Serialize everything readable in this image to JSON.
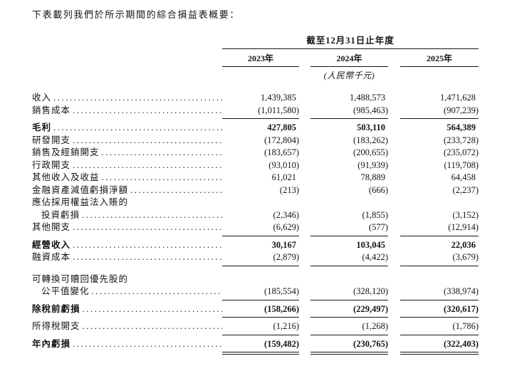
{
  "page": {
    "intro": "下表載列我們於所示期間的綜合損益表概要："
  },
  "table": {
    "period_header": "截至12月31日止年度",
    "unit_note": "(人民幣千元)",
    "columns": [
      "2023年",
      "2024年",
      "2025年"
    ],
    "rows": [
      {
        "label": "收入",
        "values": [
          "1,439,385",
          "1,488,573",
          "1,471,628"
        ],
        "bold": false,
        "indent": false,
        "rule_below": null
      },
      {
        "label": "銷售成本",
        "values": [
          "(1,011,580)",
          "(985,463)",
          "(907,239)"
        ],
        "bold": false,
        "indent": false,
        "rule_below": "single"
      },
      {
        "label": "毛利",
        "values": [
          "427,805",
          "503,110",
          "564,389"
        ],
        "bold": true,
        "indent": false,
        "rule_below": null
      },
      {
        "label": "研發開支",
        "values": [
          "(172,804)",
          "(183,262)",
          "(233,728)"
        ],
        "bold": false,
        "indent": false,
        "rule_below": null
      },
      {
        "label": "銷售及經銷開支",
        "values": [
          "(183,657)",
          "(200,655)",
          "(235,072)"
        ],
        "bold": false,
        "indent": false,
        "rule_below": null
      },
      {
        "label": "行政開支",
        "values": [
          "(93,010)",
          "(91,939)",
          "(119,708)"
        ],
        "bold": false,
        "indent": false,
        "rule_below": null
      },
      {
        "label": "其他收入及收益",
        "values": [
          "61,021",
          "78,889",
          "64,458"
        ],
        "bold": false,
        "indent": false,
        "rule_below": null
      },
      {
        "label": "金融資產減值虧損淨額",
        "values": [
          "(213)",
          "(666)",
          "(2,237)"
        ],
        "bold": false,
        "indent": false,
        "rule_below": null
      },
      {
        "label": "應佔採用權益法入賬的",
        "values": null,
        "bold": false,
        "indent": false,
        "rule_below": null
      },
      {
        "label": "投資虧損",
        "values": [
          "(2,346)",
          "(1,855)",
          "(3,152)"
        ],
        "bold": false,
        "indent": true,
        "rule_below": null
      },
      {
        "label": "其他開支",
        "values": [
          "(6,629)",
          "(577)",
          "(12,914)"
        ],
        "bold": false,
        "indent": false,
        "rule_below": "single"
      },
      {
        "label": "經營收入",
        "values": [
          "30,167",
          "103,045",
          "22,036"
        ],
        "bold": true,
        "indent": false,
        "rule_below": null
      },
      {
        "label": "融資成本",
        "values": [
          "(2,879)",
          "(4,422)",
          "(3,679)"
        ],
        "bold": false,
        "indent": false,
        "rule_below": "single"
      },
      {
        "label": "可轉換可贖回優先股的",
        "values": null,
        "bold": false,
        "indent": false,
        "rule_below": null,
        "gap_above": true
      },
      {
        "label": "公平值變化",
        "values": [
          "(185,554)",
          "(328,120)",
          "(338,974)"
        ],
        "bold": false,
        "indent": true,
        "rule_below": "single"
      },
      {
        "label": "除稅前虧損",
        "values": [
          "(158,266)",
          "(229,497)",
          "(320,617)"
        ],
        "bold": true,
        "indent": false,
        "rule_below": "single"
      },
      {
        "label": "所得稅開支",
        "values": [
          "(1,216)",
          "(1,268)",
          "(1,786)"
        ],
        "bold": false,
        "indent": false,
        "rule_below": "single"
      },
      {
        "label": "年內虧損",
        "values": [
          "(159,482)",
          "(230,765)",
          "(322,403)"
        ],
        "bold": true,
        "indent": false,
        "rule_below": "double"
      }
    ]
  }
}
